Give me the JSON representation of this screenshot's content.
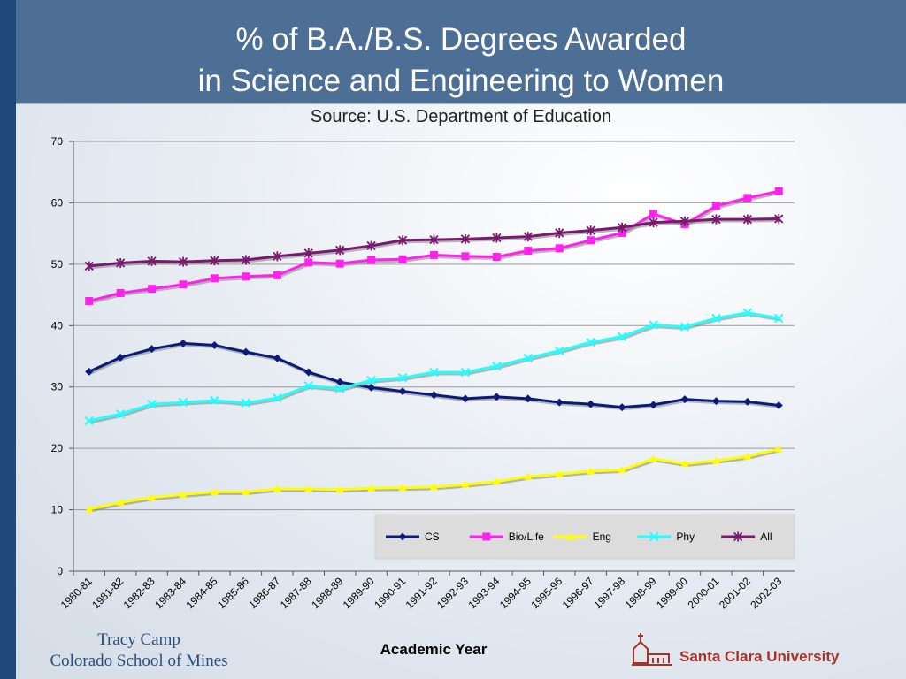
{
  "slide": {
    "title_line1": "% of B.A./B.S. Degrees Awarded",
    "title_line2": "in Science and Engineering to Women",
    "subtitle": "Source: U.S. Department of Education",
    "author": "Tracy Camp",
    "affiliation": "Colorado School of Mines",
    "logo_text": "Santa Clara University"
  },
  "colors": {
    "title_bar": "#4d6f95",
    "left_bar": "#1f4a7a",
    "CS": "#0c1a7a",
    "Bio/Life": "#ff22ee",
    "Eng": "#ffff00",
    "Phy": "#22ffff",
    "All": "#7a1a6e"
  },
  "chart_data": {
    "type": "line",
    "title": "",
    "xlabel": "Academic Year",
    "ylabel": "",
    "ylim": [
      0,
      70
    ],
    "yticks": [
      0,
      10,
      20,
      30,
      40,
      50,
      60,
      70
    ],
    "grid": true,
    "legend_position": "bottom-right",
    "categories": [
      "1980-81",
      "1981-82",
      "1982-83",
      "1983-84",
      "1984-85",
      "1985-86",
      "1986-87",
      "1987-88",
      "1988-89",
      "1989-90",
      "1990-91",
      "1991-92",
      "1992-93",
      "1993-94",
      "1994-95",
      "1995-96",
      "1996-97",
      "1997-98",
      "1998-99",
      "1999-00",
      "2000-01",
      "2001-02",
      "2002-03"
    ],
    "series": [
      {
        "name": "CS",
        "marker": "diamond",
        "values": [
          32.5,
          34.8,
          36.2,
          37.1,
          36.8,
          35.7,
          34.7,
          32.4,
          30.8,
          29.9,
          29.3,
          28.7,
          28.1,
          28.4,
          28.1,
          27.5,
          27.2,
          26.7,
          27.1,
          28.0,
          27.7,
          27.6,
          27.0
        ]
      },
      {
        "name": "Bio/Life",
        "marker": "square",
        "values": [
          44.0,
          45.3,
          46.0,
          46.7,
          47.7,
          48.0,
          48.2,
          50.3,
          50.1,
          50.7,
          50.8,
          51.5,
          51.3,
          51.2,
          52.2,
          52.6,
          53.9,
          55.1,
          58.2,
          56.5,
          59.5,
          60.8,
          61.9
        ]
      },
      {
        "name": "Eng",
        "marker": "triangle",
        "values": [
          10.1,
          11.2,
          12.0,
          12.5,
          12.9,
          12.9,
          13.4,
          13.4,
          13.3,
          13.5,
          13.6,
          13.7,
          14.1,
          14.6,
          15.4,
          15.8,
          16.3,
          16.5,
          18.3,
          17.5,
          18.0,
          18.7,
          19.9
        ]
      },
      {
        "name": "Phy",
        "marker": "x",
        "values": [
          24.5,
          25.6,
          27.2,
          27.5,
          27.8,
          27.4,
          28.2,
          30.2,
          29.7,
          31.1,
          31.5,
          32.4,
          32.4,
          33.4,
          34.7,
          35.9,
          37.3,
          38.2,
          40.1,
          39.8,
          41.2,
          42.1,
          41.2
        ]
      },
      {
        "name": "All",
        "marker": "star",
        "values": [
          49.7,
          50.2,
          50.5,
          50.4,
          50.6,
          50.7,
          51.3,
          51.8,
          52.3,
          53.0,
          53.9,
          54.0,
          54.1,
          54.3,
          54.5,
          55.1,
          55.5,
          56.0,
          56.8,
          57.0,
          57.3,
          57.3,
          57.4
        ]
      }
    ]
  }
}
